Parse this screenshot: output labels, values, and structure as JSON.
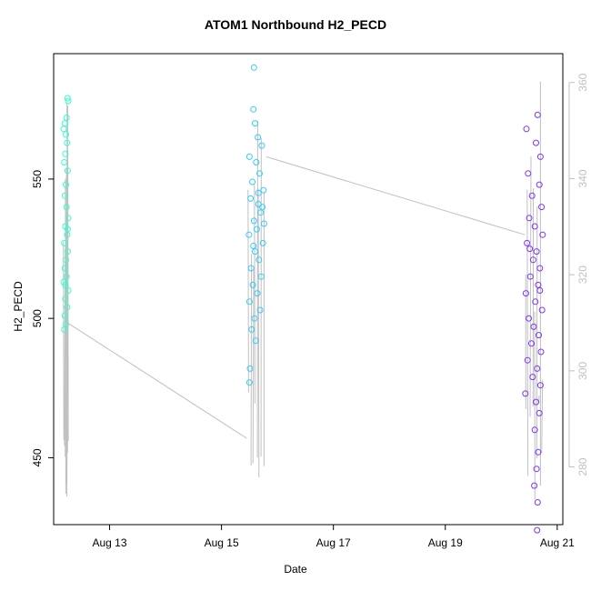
{
  "chart_data": {
    "type": "scatter",
    "title": "ATOM1 Northbound H2_PECD",
    "xlabel": "Date",
    "ylabel": "H2_PECD",
    "x_ticks": [
      "Aug 13",
      "Aug 15",
      "Aug 17",
      "Aug 19",
      "Aug 21"
    ],
    "x_tick_days": [
      13,
      15,
      17,
      19,
      21
    ],
    "xlim": [
      12.0,
      21.1
    ],
    "y_left_ticks": [
      450,
      500,
      550
    ],
    "ylim_left": [
      426,
      595
    ],
    "y_right_ticks": [
      280,
      300,
      320,
      340,
      360
    ],
    "ylim_right": [
      268,
      366
    ],
    "grid": false,
    "legend": "none",
    "colors": {
      "cluster_1": "#33ffcc",
      "cluster_2": "#33ccff",
      "cluster_3": "#8033ff",
      "line": "#c0c0c0",
      "right_axis": "#c0c0c0"
    },
    "series": [
      {
        "x_range": [
          12.18,
          12.27
        ],
        "y_range": [
          495,
          580
        ],
        "points": [
          {
            "x": 12.25,
            "y": 579
          },
          {
            "x": 12.26,
            "y": 578
          },
          {
            "x": 12.23,
            "y": 572
          },
          {
            "x": 12.2,
            "y": 570
          },
          {
            "x": 12.18,
            "y": 568
          },
          {
            "x": 12.22,
            "y": 566
          },
          {
            "x": 12.24,
            "y": 563
          },
          {
            "x": 12.21,
            "y": 559
          },
          {
            "x": 12.19,
            "y": 556
          },
          {
            "x": 12.25,
            "y": 553
          },
          {
            "x": 12.22,
            "y": 548
          },
          {
            "x": 12.2,
            "y": 544
          },
          {
            "x": 12.23,
            "y": 540
          },
          {
            "x": 12.26,
            "y": 536
          },
          {
            "x": 12.21,
            "y": 533
          },
          {
            "x": 12.24,
            "y": 530
          },
          {
            "x": 12.19,
            "y": 527
          },
          {
            "x": 12.25,
            "y": 524
          },
          {
            "x": 12.22,
            "y": 521
          },
          {
            "x": 12.2,
            "y": 518
          },
          {
            "x": 12.23,
            "y": 515
          },
          {
            "x": 12.18,
            "y": 513
          },
          {
            "x": 12.26,
            "y": 510
          },
          {
            "x": 12.21,
            "y": 507
          },
          {
            "x": 12.24,
            "y": 504
          },
          {
            "x": 12.2,
            "y": 501
          },
          {
            "x": 12.22,
            "y": 498
          },
          {
            "x": 12.19,
            "y": 496
          },
          {
            "x": 12.25,
            "y": 532
          },
          {
            "x": 12.21,
            "y": 512
          }
        ]
      },
      {
        "x_range": [
          15.48,
          15.78
        ],
        "y_range": [
          477,
          590
        ],
        "points": [
          {
            "x": 15.58,
            "y": 590
          },
          {
            "x": 15.57,
            "y": 575
          },
          {
            "x": 15.6,
            "y": 570
          },
          {
            "x": 15.65,
            "y": 565
          },
          {
            "x": 15.72,
            "y": 562
          },
          {
            "x": 15.5,
            "y": 558
          },
          {
            "x": 15.62,
            "y": 556
          },
          {
            "x": 15.68,
            "y": 552
          },
          {
            "x": 15.55,
            "y": 549
          },
          {
            "x": 15.75,
            "y": 546
          },
          {
            "x": 15.52,
            "y": 543
          },
          {
            "x": 15.66,
            "y": 541
          },
          {
            "x": 15.7,
            "y": 538
          },
          {
            "x": 15.58,
            "y": 535
          },
          {
            "x": 15.63,
            "y": 532
          },
          {
            "x": 15.49,
            "y": 530
          },
          {
            "x": 15.74,
            "y": 527
          },
          {
            "x": 15.6,
            "y": 524
          },
          {
            "x": 15.67,
            "y": 521
          },
          {
            "x": 15.53,
            "y": 518
          },
          {
            "x": 15.71,
            "y": 515
          },
          {
            "x": 15.56,
            "y": 512
          },
          {
            "x": 15.64,
            "y": 509
          },
          {
            "x": 15.5,
            "y": 506
          },
          {
            "x": 15.69,
            "y": 503
          },
          {
            "x": 15.59,
            "y": 500
          },
          {
            "x": 15.54,
            "y": 496
          },
          {
            "x": 15.61,
            "y": 492
          },
          {
            "x": 15.51,
            "y": 482
          },
          {
            "x": 15.5,
            "y": 477
          },
          {
            "x": 15.76,
            "y": 534
          },
          {
            "x": 15.73,
            "y": 540
          },
          {
            "x": 15.66,
            "y": 545
          },
          {
            "x": 15.57,
            "y": 526
          }
        ]
      },
      {
        "x_range": [
          20.43,
          20.75
        ],
        "y_range": [
          424,
          573
        ],
        "points": [
          {
            "x": 20.65,
            "y": 573
          },
          {
            "x": 20.45,
            "y": 568
          },
          {
            "x": 20.62,
            "y": 563
          },
          {
            "x": 20.7,
            "y": 558
          },
          {
            "x": 20.48,
            "y": 552
          },
          {
            "x": 20.68,
            "y": 548
          },
          {
            "x": 20.55,
            "y": 544
          },
          {
            "x": 20.72,
            "y": 540
          },
          {
            "x": 20.5,
            "y": 536
          },
          {
            "x": 20.6,
            "y": 533
          },
          {
            "x": 20.74,
            "y": 530
          },
          {
            "x": 20.46,
            "y": 527
          },
          {
            "x": 20.63,
            "y": 524
          },
          {
            "x": 20.57,
            "y": 521
          },
          {
            "x": 20.69,
            "y": 518
          },
          {
            "x": 20.52,
            "y": 515
          },
          {
            "x": 20.66,
            "y": 512
          },
          {
            "x": 20.44,
            "y": 509
          },
          {
            "x": 20.61,
            "y": 506
          },
          {
            "x": 20.73,
            "y": 503
          },
          {
            "x": 20.49,
            "y": 500
          },
          {
            "x": 20.58,
            "y": 497
          },
          {
            "x": 20.67,
            "y": 494
          },
          {
            "x": 20.54,
            "y": 491
          },
          {
            "x": 20.71,
            "y": 488
          },
          {
            "x": 20.47,
            "y": 485
          },
          {
            "x": 20.64,
            "y": 482
          },
          {
            "x": 20.56,
            "y": 479
          },
          {
            "x": 20.7,
            "y": 476
          },
          {
            "x": 20.43,
            "y": 473
          },
          {
            "x": 20.62,
            "y": 470
          },
          {
            "x": 20.68,
            "y": 466
          },
          {
            "x": 20.6,
            "y": 460
          },
          {
            "x": 20.66,
            "y": 452
          },
          {
            "x": 20.63,
            "y": 446
          },
          {
            "x": 20.59,
            "y": 440
          },
          {
            "x": 20.65,
            "y": 434
          },
          {
            "x": 20.64,
            "y": 424
          },
          {
            "x": 20.51,
            "y": 525
          },
          {
            "x": 20.69,
            "y": 510
          }
        ]
      }
    ],
    "line_y_range": [
      434,
      585
    ],
    "line_connectors": [
      {
        "from": [
          12.28,
          498
        ],
        "to": [
          15.45,
          457
        ]
      },
      {
        "from": [
          15.8,
          558
        ],
        "to": [
          20.42,
          530
        ]
      }
    ]
  }
}
